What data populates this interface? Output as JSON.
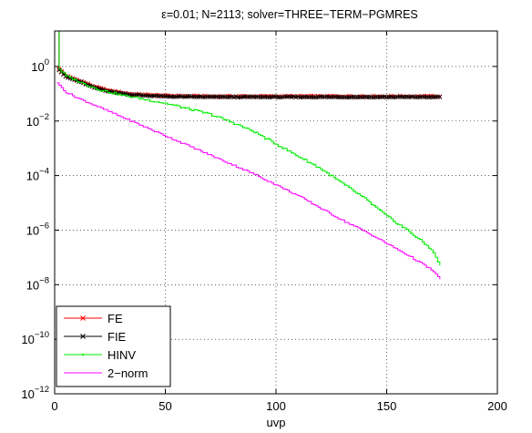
{
  "chart_data": {
    "type": "line",
    "title": "ε=0.01; N=2113; solver=THREE−TERM−PGMRES",
    "xlabel": "uvp",
    "ylabel": "",
    "xlim": [
      0,
      200
    ],
    "ylim_exponent": [
      -12,
      1.3
    ],
    "yscale": "log",
    "grid": true,
    "legend_position": "bottom-left",
    "x_ticks": [
      0,
      50,
      100,
      150,
      200
    ],
    "y_ticks": [
      {
        "base": "10",
        "exp": "0",
        "value": 0
      },
      {
        "base": "10",
        "exp": "−2",
        "value": -2
      },
      {
        "base": "10",
        "exp": "−4",
        "value": -4
      },
      {
        "base": "10",
        "exp": "−6",
        "value": -6
      },
      {
        "base": "10",
        "exp": "−8",
        "value": -8
      },
      {
        "base": "10",
        "exp": "−10",
        "value": -10
      },
      {
        "base": "10",
        "exp": "−12",
        "value": -12
      }
    ],
    "series": [
      {
        "name": "FE",
        "color": "#ff0000",
        "marker": "x",
        "points": [
          [
            1,
            2.0
          ],
          [
            2,
            -0.1
          ],
          [
            5,
            -0.35
          ],
          [
            12,
            -0.55
          ],
          [
            18,
            -0.75
          ],
          [
            25,
            -0.9
          ],
          [
            35,
            -1.02
          ],
          [
            50,
            -1.08
          ],
          [
            70,
            -1.1
          ],
          [
            174,
            -1.1
          ]
        ]
      },
      {
        "name": "FIE",
        "color": "#000000",
        "marker": "x",
        "points": [
          [
            1,
            2.0
          ],
          [
            2,
            -0.12
          ],
          [
            5,
            -0.38
          ],
          [
            12,
            -0.58
          ],
          [
            18,
            -0.78
          ],
          [
            25,
            -0.92
          ],
          [
            35,
            -1.04
          ],
          [
            50,
            -1.1
          ],
          [
            70,
            -1.12
          ],
          [
            174,
            -1.12
          ]
        ]
      },
      {
        "name": "HINV",
        "color": "#00ee00",
        "marker": "dot",
        "points": [
          [
            1,
            2.0
          ],
          [
            2,
            -0.1
          ],
          [
            5,
            -0.35
          ],
          [
            12,
            -0.6
          ],
          [
            20,
            -0.85
          ],
          [
            30,
            -1.05
          ],
          [
            40,
            -1.2
          ],
          [
            50,
            -1.35
          ],
          [
            60,
            -1.55
          ],
          [
            70,
            -1.75
          ],
          [
            80,
            -2.05
          ],
          [
            90,
            -2.4
          ],
          [
            100,
            -2.85
          ],
          [
            110,
            -3.3
          ],
          [
            120,
            -3.75
          ],
          [
            130,
            -4.3
          ],
          [
            140,
            -4.85
          ],
          [
            150,
            -5.5
          ],
          [
            160,
            -6.05
          ],
          [
            170,
            -6.7
          ],
          [
            174,
            -7.3
          ]
        ]
      },
      {
        "name": "2−norm",
        "color": "#ff00ff",
        "marker": "none",
        "points": [
          [
            1,
            -0.6
          ],
          [
            5,
            -0.95
          ],
          [
            10,
            -1.15
          ],
          [
            20,
            -1.5
          ],
          [
            30,
            -1.85
          ],
          [
            40,
            -2.2
          ],
          [
            50,
            -2.55
          ],
          [
            60,
            -2.9
          ],
          [
            70,
            -3.25
          ],
          [
            80,
            -3.6
          ],
          [
            90,
            -3.95
          ],
          [
            100,
            -4.35
          ],
          [
            110,
            -4.75
          ],
          [
            120,
            -5.2
          ],
          [
            130,
            -5.65
          ],
          [
            140,
            -6.05
          ],
          [
            150,
            -6.5
          ],
          [
            160,
            -6.95
          ],
          [
            170,
            -7.45
          ],
          [
            174,
            -7.8
          ]
        ]
      }
    ]
  }
}
